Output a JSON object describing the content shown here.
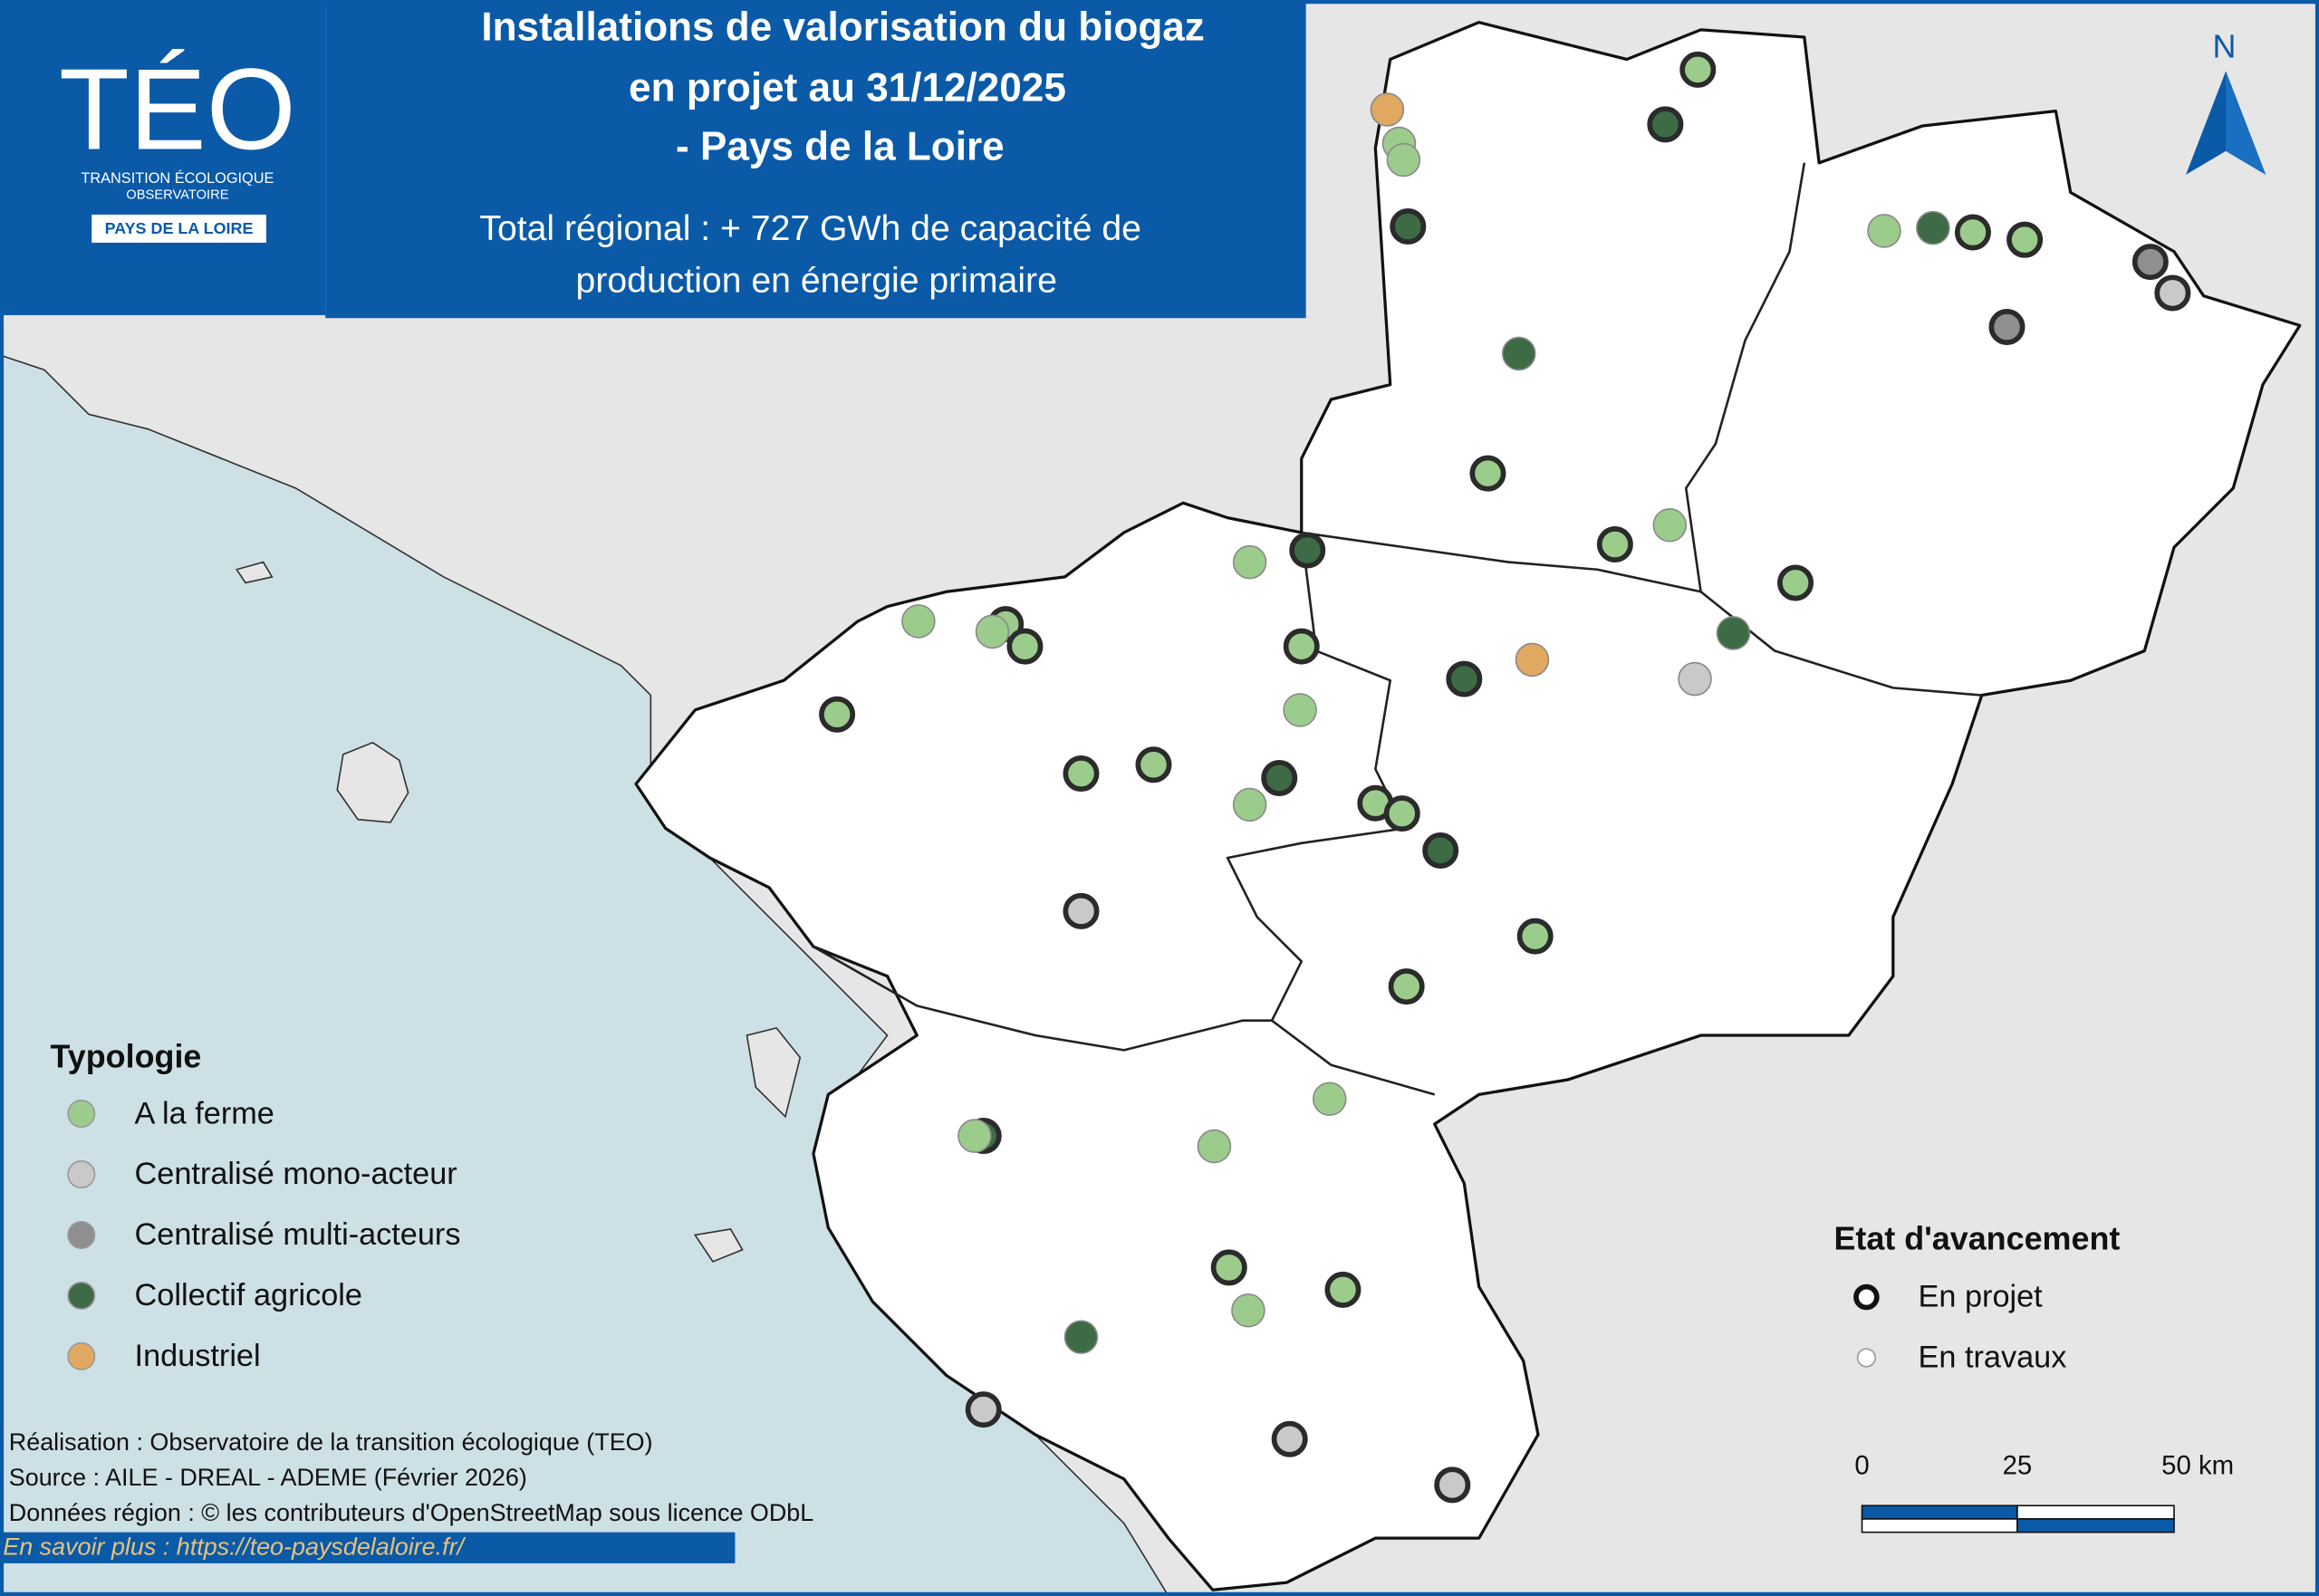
{
  "header": {
    "title": [
      "Installations de valorisation du biogaz",
      "en projet au 31/12/2025",
      "- Pays de la Loire"
    ],
    "subtitle": [
      "Total régional : + 727 GWh de capacité de",
      "production en énergie primaire"
    ]
  },
  "logo": {
    "name": "TÉO",
    "line1": "TRANSITION ÉCOLOGIQUE",
    "line2": "OBSERVATOIRE",
    "region": "PAYS DE LA LOIRE"
  },
  "north": "N",
  "legend_typologie": {
    "title": "Typologie",
    "items": [
      "A la ferme",
      "Centralisé mono-acteur",
      "Centralisé multi-acteurs",
      "Collectif agricole",
      "Industriel"
    ]
  },
  "legend_etat": {
    "title": "Etat d'avancement",
    "items": [
      "En projet",
      "En travaux"
    ]
  },
  "scale_bar": {
    "labels": [
      "0",
      "25",
      "50 km"
    ]
  },
  "credits": [
    "Réalisation : Observatoire de la transition écologique (TEO)",
    "Source : AILE - DREAL - ADEME (Février 2026)",
    "Données région : © les contributeurs d'OpenStreetMap sous licence ODbL"
  ],
  "link": "En savoir plus : https://teo-paysdelaloire.fr/"
}
